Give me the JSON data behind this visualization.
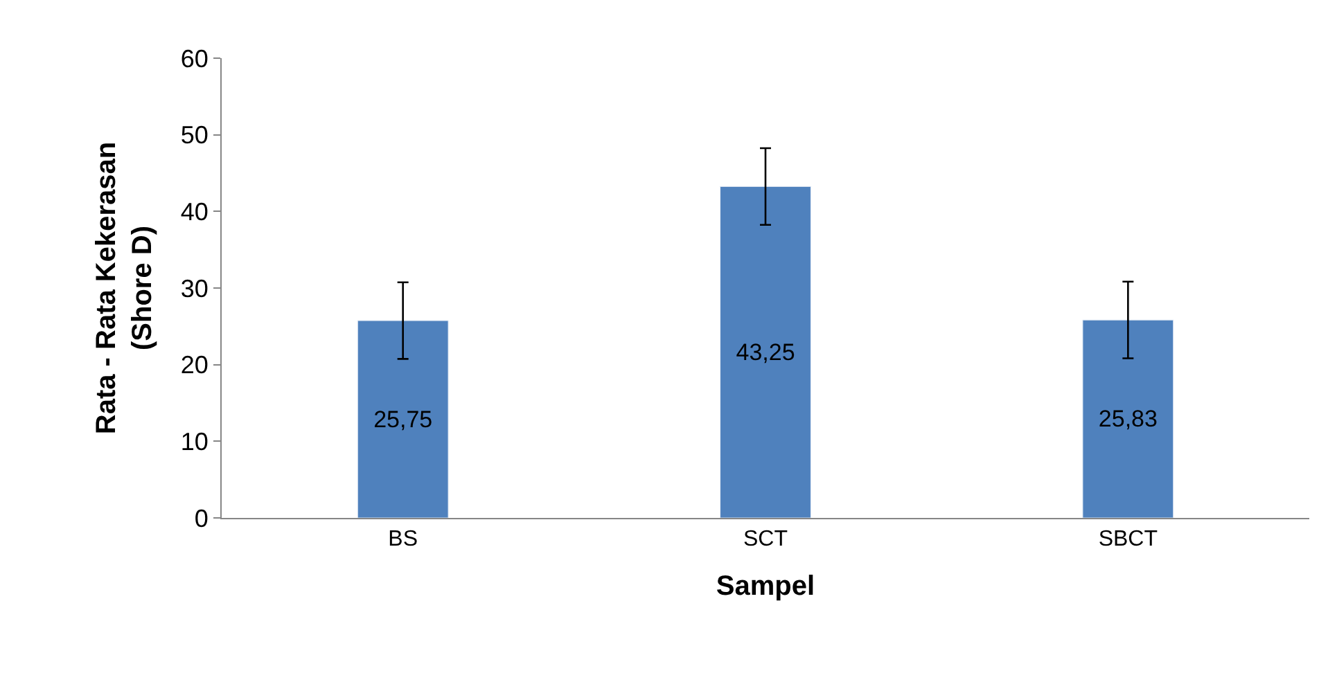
{
  "chart_data": {
    "type": "bar",
    "xlabel": "Sampel",
    "ylabel": "Rata - Rata Kekerasan\n(Shore D)",
    "categories": [
      "BS",
      "SCT",
      "SBCT"
    ],
    "values": [
      25.75,
      43.25,
      25.83
    ],
    "color": "#4f81bd",
    "errors": [
      5,
      5,
      5
    ],
    "value_labels": [
      "25,75",
      "43,25",
      "25,83"
    ],
    "ylim": [
      0,
      60
    ],
    "yticks": [
      0,
      10,
      20,
      30,
      40,
      50,
      60
    ],
    "legend": false
  }
}
